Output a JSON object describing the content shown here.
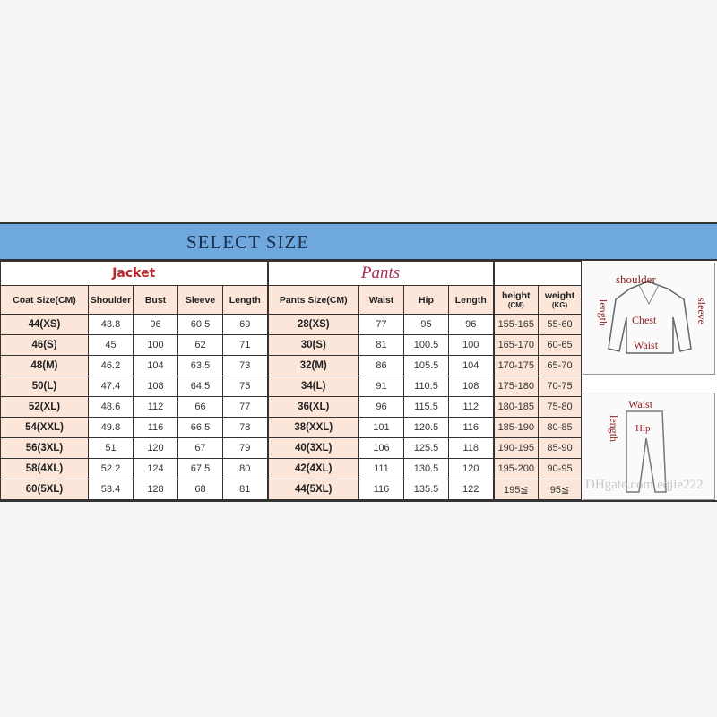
{
  "banner": {
    "title": "SELECT SIZE"
  },
  "groups": {
    "jacket": "Jacket",
    "pants": "Pants"
  },
  "headers": {
    "coat_size": "Coat Size(CM)",
    "shoulder": "Shoulder",
    "bust": "Bust",
    "sleeve": "Sleeve",
    "length": "Length",
    "pants_size": "Pants Size(CM)",
    "waist": "Waist",
    "hip": "Hip",
    "pants_length": "Length",
    "height": "height",
    "height_unit": "(CM)",
    "weight": "weight",
    "weight_unit": "(KG)"
  },
  "rows": [
    [
      "44(XS)",
      "43.8",
      "96",
      "60.5",
      "69",
      "28(XS)",
      "77",
      "95",
      "96",
      "155-165",
      "55-60"
    ],
    [
      "46(S)",
      "45",
      "100",
      "62",
      "71",
      "30(S)",
      "81",
      "100.5",
      "100",
      "165-170",
      "60-65"
    ],
    [
      "48(M)",
      "46.2",
      "104",
      "63.5",
      "73",
      "32(M)",
      "86",
      "105.5",
      "104",
      "170-175",
      "65-70"
    ],
    [
      "50(L)",
      "47.4",
      "108",
      "64.5",
      "75",
      "34(L)",
      "91",
      "110.5",
      "108",
      "175-180",
      "70-75"
    ],
    [
      "52(XL)",
      "48.6",
      "112",
      "66",
      "77",
      "36(XL)",
      "96",
      "115.5",
      "112",
      "180-185",
      "75-80"
    ],
    [
      "54(XXL)",
      "49.8",
      "116",
      "66.5",
      "78",
      "38(XXL)",
      "101",
      "120.5",
      "116",
      "185-190",
      "80-85"
    ],
    [
      "56(3XL)",
      "51",
      "120",
      "67",
      "79",
      "40(3XL)",
      "106",
      "125.5",
      "118",
      "190-195",
      "85-90"
    ],
    [
      "58(4XL)",
      "52.2",
      "124",
      "67.5",
      "80",
      "42(4XL)",
      "111",
      "130.5",
      "120",
      "195-200",
      "90-95"
    ],
    [
      "60(5XL)",
      "53.4",
      "128",
      "68",
      "81",
      "44(5XL)",
      "116",
      "135.5",
      "122",
      "195≦",
      "95≦"
    ]
  ],
  "jacket_diagram": {
    "shoulder": "shoulder",
    "length": "length",
    "sleeve": "sleeve",
    "chest": "Chest",
    "waist": "Waist"
  },
  "pants_diagram": {
    "waist": "Waist",
    "length": "length",
    "hip": "Hip"
  },
  "watermark": "DHgate.com eqjie222",
  "colors": {
    "banner": "#6fa8dc",
    "header_fill": "#fbe6d9",
    "jacket_label": "#c0272d",
    "pants_label": "#a8325a",
    "diagram_label": "#8b1a1a"
  }
}
